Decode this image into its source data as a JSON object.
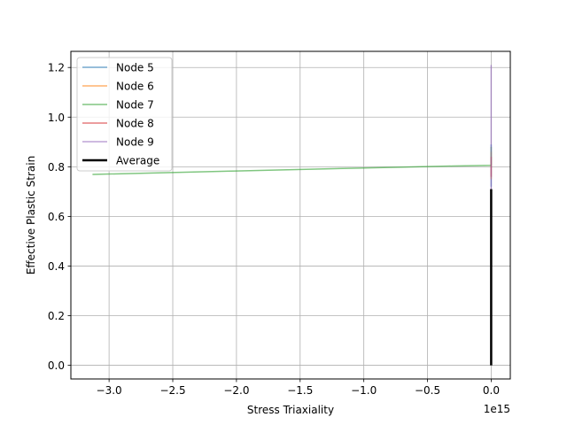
{
  "chart_data": {
    "type": "line",
    "title": "",
    "xlabel": "Stress Triaxiality",
    "ylabel": "Effective Plastic Strain",
    "x_offset_label": "1e15",
    "xlim": [
      -3.3,
      0.15
    ],
    "ylim": [
      -0.055,
      1.265
    ],
    "x_unit_multiplier": 1000000000000000.0,
    "xticks": [
      -3.0,
      -2.5,
      -2.0,
      -1.5,
      -1.0,
      -0.5,
      0.0
    ],
    "xtick_labels": [
      "−3.0",
      "−2.5",
      "−2.0",
      "−1.5",
      "−1.0",
      "−0.5",
      "0.0"
    ],
    "yticks": [
      0.0,
      0.2,
      0.4,
      0.6,
      0.8,
      1.0,
      1.2
    ],
    "ytick_labels": [
      "0.0",
      "0.2",
      "0.4",
      "0.6",
      "0.8",
      "1.0",
      "1.2"
    ],
    "grid": true,
    "legend_position": "upper-left",
    "series": [
      {
        "name": "Node 5",
        "color": "#1f77b4",
        "width": 1.5,
        "opacity": 0.6,
        "x": [
          0.0,
          0.0,
          0.0,
          0.0
        ],
        "y": [
          0.72,
          0.8,
          0.84,
          0.89
        ]
      },
      {
        "name": "Node 6",
        "color": "#ff7f0e",
        "width": 1.5,
        "opacity": 0.6,
        "x": [
          0.0,
          0.0,
          0.0,
          0.0
        ],
        "y": [
          0.75,
          0.8,
          0.83,
          0.86
        ]
      },
      {
        "name": "Node 7",
        "color": "#2ca02c",
        "width": 1.5,
        "opacity": 0.6,
        "x": [
          -3.13,
          -2.0,
          -1.0,
          -0.3,
          0.0,
          0.0,
          0.0
        ],
        "y": [
          0.769,
          0.783,
          0.795,
          0.803,
          0.806,
          0.83,
          0.88
        ]
      },
      {
        "name": "Node 8",
        "color": "#d62728",
        "width": 1.5,
        "opacity": 0.6,
        "x": [
          0.0,
          0.0,
          0.0
        ],
        "y": [
          0.76,
          0.8,
          0.84
        ]
      },
      {
        "name": "Node 9",
        "color": "#9467bd",
        "width": 1.5,
        "opacity": 0.6,
        "x": [
          0.0,
          0.0,
          0.0,
          0.0
        ],
        "y": [
          0.7,
          0.85,
          1.05,
          1.21
        ]
      },
      {
        "name": "Average",
        "color": "#000000",
        "width": 2.5,
        "opacity": 1.0,
        "x": [
          0.0,
          0.0
        ],
        "y": [
          0.0,
          0.71
        ]
      }
    ]
  }
}
